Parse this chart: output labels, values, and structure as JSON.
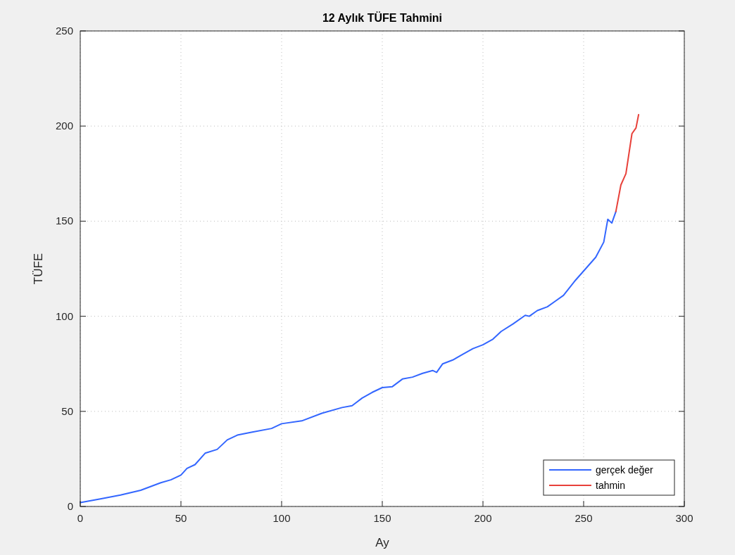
{
  "chart_data": {
    "type": "line",
    "title": "12 Aylık TÜFE Tahmini",
    "xlabel": "Ay",
    "ylabel": "TÜFE",
    "xlim": [
      0,
      300
    ],
    "xticks": [
      0,
      50,
      100,
      150,
      200,
      250,
      300
    ],
    "ylim": [
      0,
      250
    ],
    "yticks": [
      0,
      50,
      100,
      150,
      200,
      250
    ],
    "grid": true,
    "legend": "bottom right",
    "series": [
      {
        "name": "gerçek değer",
        "color": "#3366ff",
        "x": [
          0,
          10,
          20,
          30,
          40,
          45,
          50,
          53,
          57,
          62,
          68,
          73,
          78,
          85,
          95,
          100,
          110,
          120,
          130,
          135,
          140,
          145,
          150,
          155,
          160,
          165,
          170,
          175,
          177,
          180,
          185,
          190,
          195,
          200,
          205,
          209,
          215,
          221,
          223,
          227,
          232,
          236,
          240,
          246,
          251,
          256,
          260,
          262,
          264,
          266
        ],
        "values": [
          2,
          4,
          6,
          8.5,
          12.5,
          14,
          16.5,
          20,
          22,
          28,
          30,
          35,
          37.5,
          39,
          41,
          43.5,
          45,
          49,
          52,
          53,
          57,
          60,
          62.5,
          63,
          67,
          68,
          70,
          71.5,
          70.5,
          75,
          77,
          80,
          83,
          85,
          88,
          92,
          96,
          100.5,
          100,
          103,
          105,
          108,
          111,
          119,
          125,
          131,
          139,
          151,
          149,
          155
        ]
      },
      {
        "name": "tahmin",
        "color": "#e8413a",
        "x": [
          266,
          268.5,
          271,
          274,
          276,
          277.3
        ],
        "values": [
          155,
          169,
          175,
          196,
          199,
          206
        ]
      }
    ]
  }
}
